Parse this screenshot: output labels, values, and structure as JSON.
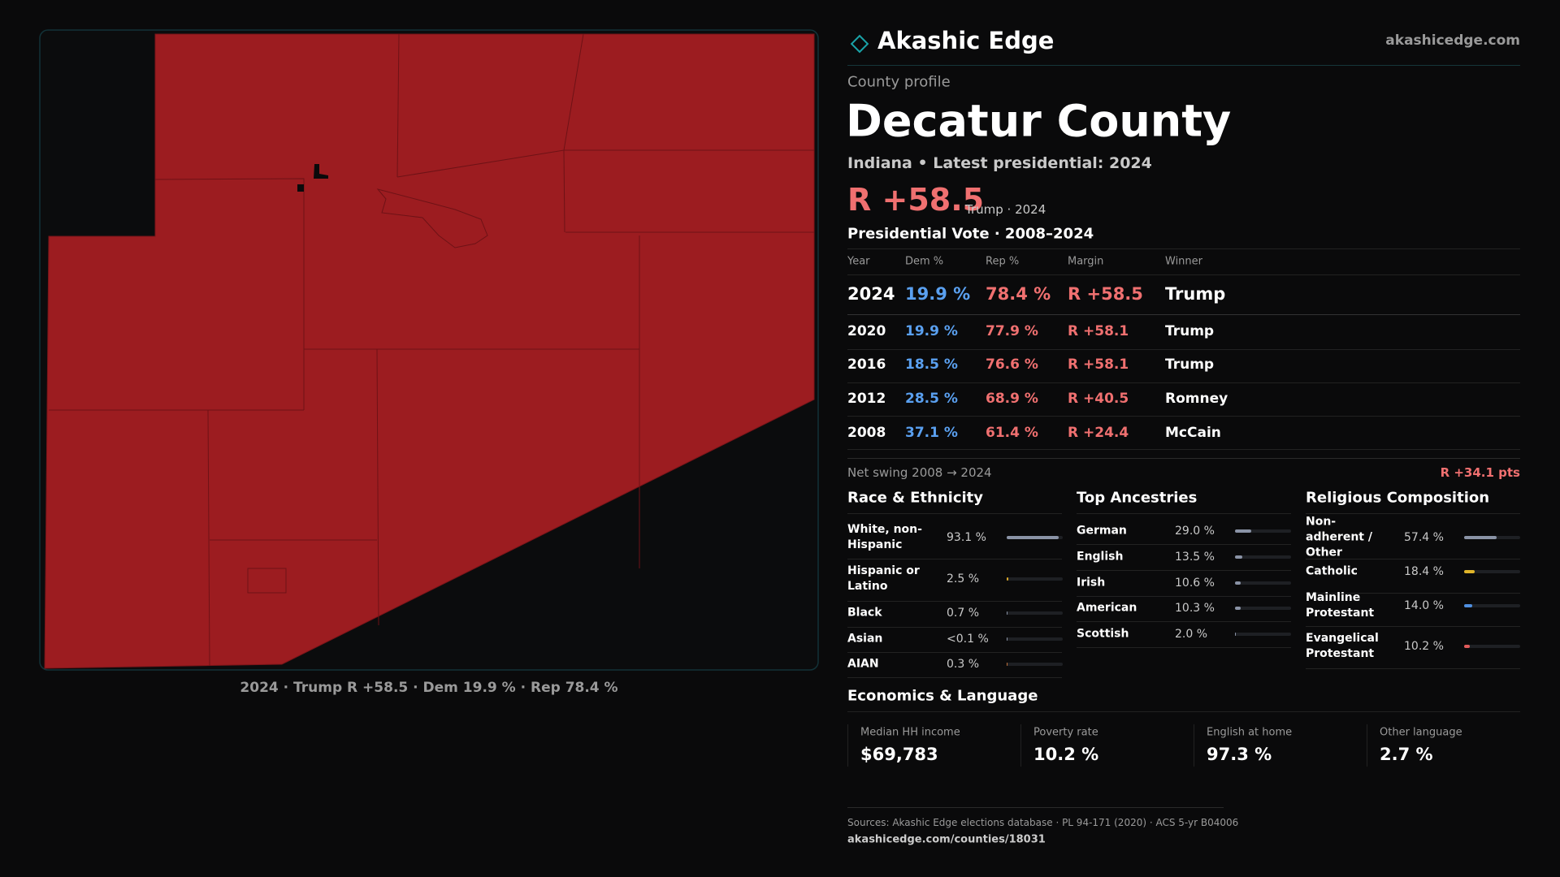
{
  "brand": "Akashic Edge",
  "site": "akashicedge.com",
  "kicker": "County profile",
  "title": "Decatur County",
  "subtitle": "Indiana • Latest presidential: 2024",
  "headline_margin": "R +58.5",
  "headline_note": "Trump · 2024",
  "map_caption": "2024 · Trump R +58.5 · Dem 19.9 % · Rep 78.4 %",
  "vote_table": {
    "title": "Presidential Vote · 2008–2024",
    "columns": [
      "Year",
      "Dem %",
      "Rep %",
      "Margin",
      "Winner"
    ],
    "rows": [
      [
        "2024",
        "19.9 %",
        "78.4 %",
        "R +58.5",
        "Trump"
      ],
      [
        "2020",
        "19.9 %",
        "77.9 %",
        "R +58.1",
        "Trump"
      ],
      [
        "2016",
        "18.5 %",
        "76.6 %",
        "R +58.1",
        "Trump"
      ],
      [
        "2012",
        "28.5 %",
        "68.9 %",
        "R +40.5",
        "Romney"
      ],
      [
        "2008",
        "37.1 %",
        "61.4 %",
        "R +24.4",
        "McCain"
      ]
    ]
  },
  "net_swing": {
    "label": "Net swing 2008 → 2024",
    "value": "R +34.1 pts"
  },
  "race": {
    "title": "Race & Ethnicity",
    "rows": [
      {
        "label": "White, non-Hispanic",
        "value": 93.1,
        "value_label": "93.1 %",
        "color": "#8a93a6"
      },
      {
        "label": "Hispanic or Latino",
        "value": 2.5,
        "value_label": "2.5 %",
        "color": "#d9a72a"
      },
      {
        "label": "Black",
        "value": 0.7,
        "value_label": "0.7 %",
        "color": "#8a93a6"
      },
      {
        "label": "Asian",
        "value": 0.05,
        "value_label": "<0.1 %",
        "color": "#8a93a6"
      },
      {
        "label": "AIAN",
        "value": 0.3,
        "value_label": "0.3 %",
        "color": "#c0703a"
      }
    ]
  },
  "ancestry": {
    "title": "Top Ancestries",
    "rows": [
      {
        "label": "German",
        "value": 29.0,
        "value_label": "29.0 %",
        "color": "#8a93a6"
      },
      {
        "label": "English",
        "value": 13.5,
        "value_label": "13.5 %",
        "color": "#8a93a6"
      },
      {
        "label": "Irish",
        "value": 10.6,
        "value_label": "10.6 %",
        "color": "#8a93a6"
      },
      {
        "label": "American",
        "value": 10.3,
        "value_label": "10.3 %",
        "color": "#8a93a6"
      },
      {
        "label": "Scottish",
        "value": 2.0,
        "value_label": "2.0 %",
        "color": "#8a93a6"
      }
    ]
  },
  "religion": {
    "title": "Religious Composition",
    "rows": [
      {
        "label": "Non-adherent / Other",
        "value": 57.4,
        "value_label": "57.4 %",
        "color": "#8a93a6"
      },
      {
        "label": "Catholic",
        "value": 18.4,
        "value_label": "18.4 %",
        "color": "#e0b52a"
      },
      {
        "label": "Mainline Protestant",
        "value": 14.0,
        "value_label": "14.0 %",
        "color": "#4f8fe0"
      },
      {
        "label": "Evangelical Protestant",
        "value": 10.2,
        "value_label": "10.2 %",
        "color": "#e05a5a"
      }
    ]
  },
  "economics": {
    "title": "Economics & Language",
    "items": [
      {
        "label": "Median HH income",
        "value": "$69,783"
      },
      {
        "label": "Poverty rate",
        "value": "10.2 %"
      },
      {
        "label": "English at home",
        "value": "97.3 %"
      },
      {
        "label": "Other language",
        "value": "2.7 %"
      }
    ]
  },
  "sources": "Sources: Akashic Edge elections database · PL 94-171 (2020) · ACS 5-yr B04006",
  "url": "akashicedge.com/counties/18031"
}
